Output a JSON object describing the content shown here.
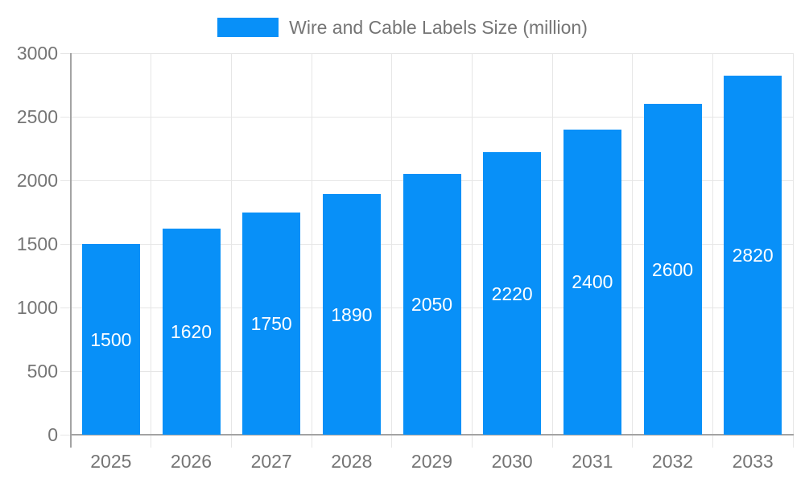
{
  "chart_data": {
    "type": "bar",
    "title": "Wire and Cable Labels Size (million)",
    "legend_position": "top",
    "categories": [
      "2025",
      "2026",
      "2027",
      "2028",
      "2029",
      "2030",
      "2031",
      "2032",
      "2033"
    ],
    "values": [
      1500,
      1620,
      1750,
      1890,
      2050,
      2220,
      2400,
      2600,
      2820
    ],
    "xlabel": "",
    "ylabel": "",
    "ylim": [
      0,
      3000
    ],
    "yticks": [
      0,
      500,
      1000,
      1500,
      2000,
      2500,
      3000
    ],
    "grid": true,
    "bar_color": "#0890F8",
    "value_label_color": "#ffffff",
    "grid_color": "#e6e6e6",
    "axis_color": "#a3a3a3",
    "tick_label_color": "#757575"
  }
}
